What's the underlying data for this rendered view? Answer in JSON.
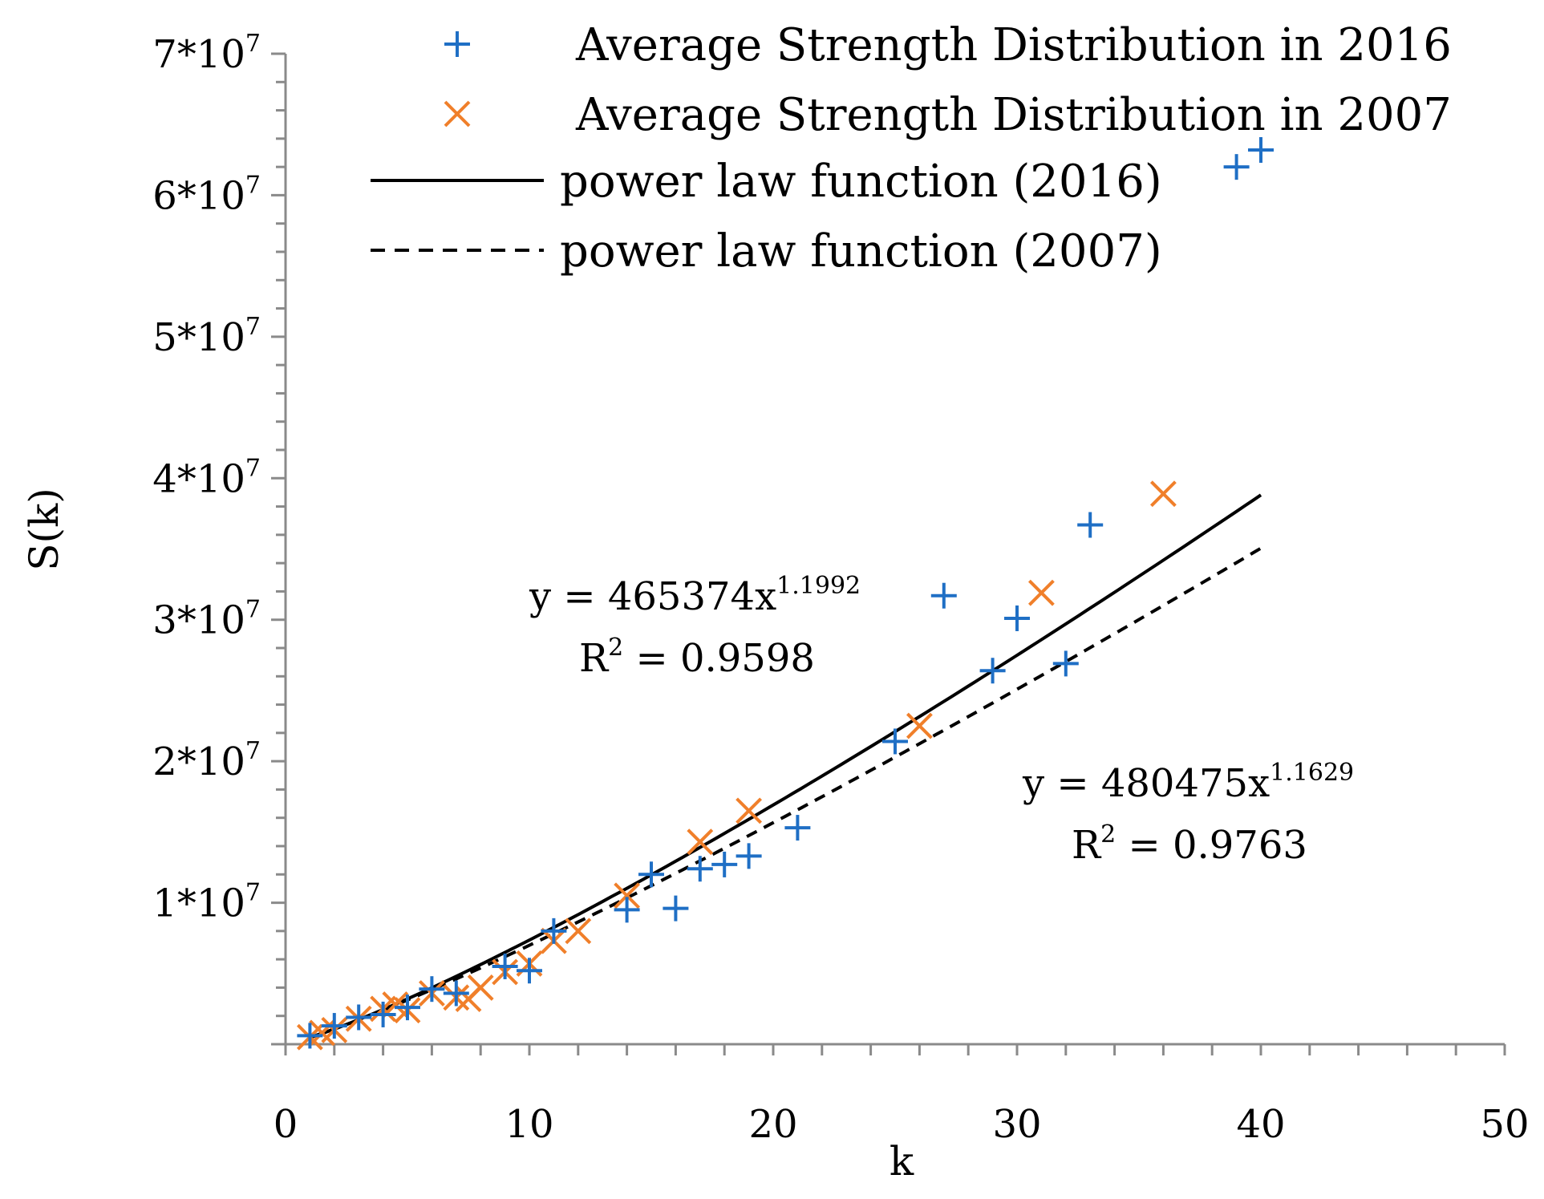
{
  "chart_data": {
    "type": "scatter",
    "title": "",
    "xlabel": "k",
    "ylabel": "S(k)",
    "xlim": [
      0,
      50
    ],
    "ylim": [
      0,
      70000000
    ],
    "x_ticks": [
      {
        "value": 0,
        "label": "0"
      },
      {
        "value": 10,
        "label": "10"
      },
      {
        "value": 20,
        "label": "20"
      },
      {
        "value": 30,
        "label": "30"
      },
      {
        "value": 40,
        "label": "40"
      },
      {
        "value": 50,
        "label": "50"
      }
    ],
    "y_ticks": [
      {
        "value": 10000000,
        "base": "1*10",
        "exp": "7"
      },
      {
        "value": 20000000,
        "base": "2*10",
        "exp": "7"
      },
      {
        "value": 30000000,
        "base": "3*10",
        "exp": "7"
      },
      {
        "value": 40000000,
        "base": "4*10",
        "exp": "7"
      },
      {
        "value": 50000000,
        "base": "5*10",
        "exp": "7"
      },
      {
        "value": 60000000,
        "base": "6*10",
        "exp": "7"
      },
      {
        "value": 70000000,
        "base": "7*10",
        "exp": "7"
      }
    ],
    "legend_position": "top-right",
    "series": [
      {
        "name": "Average Strength Distribution in 2016",
        "kind": "scatter",
        "marker": "plus",
        "color": "#1f6fc5",
        "x": [
          1,
          2,
          3,
          4,
          5,
          6,
          7,
          9,
          10,
          11,
          14,
          15,
          16,
          17,
          18,
          19,
          21,
          25,
          27,
          29,
          30,
          32,
          33,
          39,
          40
        ],
        "y": [
          600000,
          1300000,
          1900000,
          2100000,
          2600000,
          3900000,
          3600000,
          5500000,
          5200000,
          8000000,
          9500000,
          12000000,
          9600000,
          12400000,
          12700000,
          13300000,
          15300000,
          21400000,
          31700000,
          26400000,
          30100000,
          26900000,
          36700000,
          62000000,
          63200000
        ]
      },
      {
        "name": "Average Strength Distribution in 2007",
        "kind": "scatter",
        "marker": "cross",
        "color": "#f07f2a",
        "x": [
          1,
          1.5,
          2,
          3,
          4,
          4.5,
          5,
          6,
          7,
          7.5,
          8,
          9,
          10,
          11,
          12,
          14,
          17,
          19,
          26,
          31,
          36
        ],
        "y": [
          500000,
          800000,
          1000000,
          1800000,
          2500000,
          2800000,
          2400000,
          3600000,
          3300000,
          3200000,
          4000000,
          5100000,
          5700000,
          7300000,
          8000000,
          10500000,
          14300000,
          16500000,
          22500000,
          31900000,
          38900000
        ]
      },
      {
        "name": "power law function (2016)",
        "kind": "line",
        "style": "solid",
        "color": "#000000",
        "coef": 465374,
        "exponent": 1.1992,
        "x_range": [
          1,
          40
        ]
      },
      {
        "name": "power law function (2007)",
        "kind": "line",
        "style": "dashed",
        "color": "#000000",
        "coef": 480475,
        "exponent": 1.1629,
        "x_range": [
          1,
          40
        ]
      }
    ],
    "annotations": [
      {
        "id": "fit2016",
        "eq_prefix": "y = 465374x",
        "eq_exp": "1.1992",
        "r2_prefix": "R",
        "r2_sup": "2",
        "r2_suffix": " = 0.9598"
      },
      {
        "id": "fit2007",
        "eq_prefix": "y = 480475x",
        "eq_exp": "1.1629",
        "r2_prefix": "R",
        "r2_sup": "2",
        "r2_suffix": " = 0.9763"
      }
    ]
  }
}
